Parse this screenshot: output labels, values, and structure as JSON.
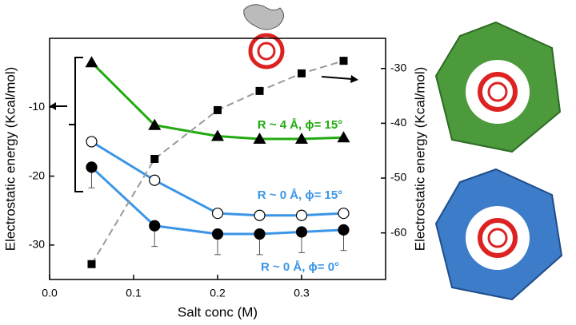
{
  "chart_data": {
    "type": "line",
    "xlabel": "Salt conc (M)",
    "ylabel": "Electrostatic energy (Kcal/mol)",
    "y2label": "Electrostatic energy (Kcal/mol)",
    "xlim": [
      0,
      0.4
    ],
    "xticks": [
      {
        "value": 0,
        "label": "0.0"
      },
      0.1,
      0.2,
      0.3
    ],
    "ylim": [
      -35,
      0
    ],
    "yticks": [
      -30,
      -20,
      -10
    ],
    "y2lim": [
      -68.5,
      -24.5
    ],
    "y2ticks": [
      -60,
      -50,
      -40,
      -30
    ],
    "x": [
      0.05,
      0.125,
      0.2,
      0.25,
      0.3,
      0.35
    ],
    "series": [
      {
        "name": "R ~ 4 Å, ϕ= 15°",
        "color": "#22aa11",
        "marker": "triangle",
        "values": [
          -3.5,
          -12.6,
          -14.2,
          -14.6,
          -14.6,
          -14.4
        ]
      },
      {
        "name": "R ~ 0 Å, ϕ= 15°",
        "color": "#3b95e6",
        "marker": "circle-open",
        "values": [
          -15.0,
          -20.6,
          -25.4,
          -25.7,
          -25.7,
          -25.4
        ]
      },
      {
        "name": "R  ~ 0 Å, ϕ= 0°",
        "color": "#3b95e6",
        "marker": "circle",
        "values": [
          -18.7,
          -27.2,
          -28.4,
          -28.4,
          -28.1,
          -27.8
        ],
        "errors": [
          3,
          3,
          3,
          3,
          3,
          3
        ]
      },
      {
        "color": "#999999",
        "marker": "square",
        "linestyle": "dashed",
        "axis": "y2",
        "values": [
          -65.7,
          -46.5,
          -37.6,
          -34.1,
          -30.9,
          -28.6
        ]
      }
    ]
  }
}
